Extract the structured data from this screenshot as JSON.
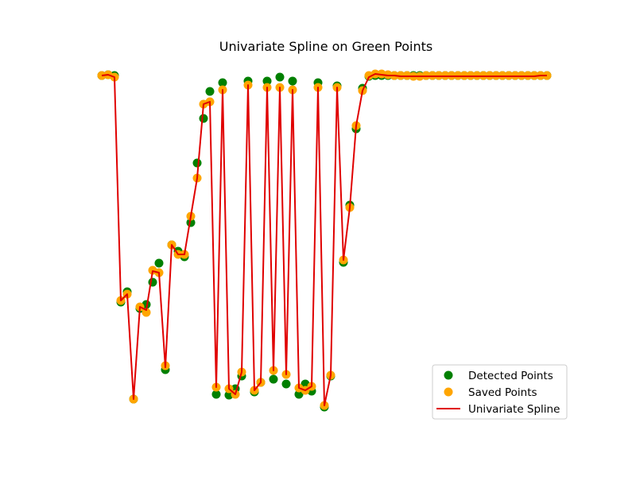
{
  "chart_data": {
    "type": "scatter",
    "title": "Univariate Spline on Green Points",
    "xlabel": "",
    "ylabel": "",
    "axes_visible": false,
    "grid": false,
    "legend_placement": "lower-right",
    "colors": {
      "detected": "#008000",
      "saved": "#ffa500",
      "spline": "#e00000"
    },
    "series": [
      {
        "name": "Detected Points",
        "kind": "scatter",
        "color": "#008000",
        "points": [
          [
            128,
            95
          ],
          [
            136,
            94
          ],
          [
            144,
            95
          ],
          [
            152,
            380
          ],
          [
            160,
            367
          ],
          [
            168,
            502
          ],
          [
            176,
            388
          ],
          [
            184,
            383
          ],
          [
            192,
            355
          ],
          [
            200,
            331
          ],
          [
            208,
            465
          ],
          [
            216,
            308
          ],
          [
            224,
            316
          ],
          [
            232,
            323
          ],
          [
            240,
            280
          ],
          [
            248,
            205
          ],
          [
            256,
            149
          ],
          [
            264,
            115
          ],
          [
            272,
            496
          ],
          [
            280,
            104
          ],
          [
            288,
            497
          ],
          [
            296,
            489
          ],
          [
            304,
            473
          ],
          [
            312,
            102
          ],
          [
            320,
            493
          ],
          [
            328,
            481
          ],
          [
            336,
            102
          ],
          [
            344,
            477
          ],
          [
            352,
            97
          ],
          [
            360,
            483
          ],
          [
            368,
            102
          ],
          [
            376,
            496
          ],
          [
            384,
            483
          ],
          [
            392,
            492
          ],
          [
            400,
            104
          ],
          [
            408,
            512
          ],
          [
            416,
            473
          ],
          [
            424,
            108
          ],
          [
            432,
            330
          ],
          [
            440,
            258
          ],
          [
            448,
            162
          ],
          [
            456,
            111
          ],
          [
            464,
            96
          ],
          [
            472,
            95
          ],
          [
            480,
            95
          ],
          [
            488,
            95
          ],
          [
            496,
            95
          ],
          [
            504,
            95
          ],
          [
            512,
            95
          ],
          [
            520,
            95
          ],
          [
            528,
            95
          ],
          [
            536,
            95
          ],
          [
            544,
            95
          ],
          [
            552,
            95
          ],
          [
            560,
            95
          ],
          [
            568,
            95
          ],
          [
            576,
            95
          ],
          [
            584,
            95
          ],
          [
            592,
            95
          ],
          [
            600,
            95
          ],
          [
            608,
            95
          ],
          [
            616,
            95
          ],
          [
            624,
            95
          ],
          [
            632,
            95
          ],
          [
            640,
            95
          ],
          [
            648,
            95
          ],
          [
            656,
            95
          ],
          [
            664,
            95
          ],
          [
            672,
            95
          ],
          [
            680,
            95
          ],
          [
            688,
            95
          ]
        ]
      },
      {
        "name": "Saved Points",
        "kind": "scatter",
        "color": "#ffa500",
        "points": [
          [
            128,
            95
          ],
          [
            136,
            94
          ],
          [
            144,
            97
          ],
          [
            152,
            378
          ],
          [
            160,
            370
          ],
          [
            168,
            502
          ],
          [
            176,
            386
          ],
          [
            184,
            393
          ],
          [
            192,
            340
          ],
          [
            200,
            343
          ],
          [
            208,
            460
          ],
          [
            216,
            308
          ],
          [
            224,
            320
          ],
          [
            232,
            320
          ],
          [
            240,
            272
          ],
          [
            248,
            224
          ],
          [
            256,
            131
          ],
          [
            264,
            128
          ],
          [
            272,
            487
          ],
          [
            280,
            113
          ],
          [
            288,
            489
          ],
          [
            296,
            496
          ],
          [
            304,
            468
          ],
          [
            312,
            107
          ],
          [
            320,
            491
          ],
          [
            328,
            481
          ],
          [
            336,
            110
          ],
          [
            344,
            466
          ],
          [
            352,
            110
          ],
          [
            360,
            471
          ],
          [
            368,
            113
          ],
          [
            376,
            488
          ],
          [
            384,
            491
          ],
          [
            392,
            486
          ],
          [
            400,
            110
          ],
          [
            408,
            510
          ],
          [
            416,
            472
          ],
          [
            424,
            110
          ],
          [
            432,
            327
          ],
          [
            440,
            261
          ],
          [
            448,
            158
          ],
          [
            456,
            114
          ],
          [
            464,
            95
          ],
          [
            472,
            93
          ],
          [
            480,
            93
          ],
          [
            488,
            94
          ],
          [
            496,
            95
          ],
          [
            504,
            95
          ],
          [
            512,
            95
          ],
          [
            520,
            96
          ],
          [
            528,
            96
          ],
          [
            536,
            95
          ],
          [
            544,
            95
          ],
          [
            552,
            95
          ],
          [
            560,
            95
          ],
          [
            568,
            95
          ],
          [
            576,
            95
          ],
          [
            584,
            95
          ],
          [
            592,
            95
          ],
          [
            600,
            95
          ],
          [
            608,
            95
          ],
          [
            616,
            95
          ],
          [
            624,
            95
          ],
          [
            632,
            95
          ],
          [
            640,
            95
          ],
          [
            648,
            95
          ],
          [
            656,
            95
          ],
          [
            664,
            95
          ],
          [
            672,
            95
          ],
          [
            680,
            95
          ],
          [
            688,
            95
          ]
        ]
      },
      {
        "name": "Univariate Spline",
        "kind": "line",
        "color": "#e00000",
        "points": [
          [
            128,
            95
          ],
          [
            136,
            94
          ],
          [
            144,
            97
          ],
          [
            152,
            378
          ],
          [
            160,
            370
          ],
          [
            168,
            502
          ],
          [
            176,
            386
          ],
          [
            184,
            390
          ],
          [
            192,
            341
          ],
          [
            200,
            343
          ],
          [
            208,
            462
          ],
          [
            216,
            308
          ],
          [
            224,
            320
          ],
          [
            232,
            320
          ],
          [
            240,
            272
          ],
          [
            248,
            224
          ],
          [
            256,
            131
          ],
          [
            264,
            128
          ],
          [
            272,
            487
          ],
          [
            280,
            113
          ],
          [
            288,
            489
          ],
          [
            296,
            496
          ],
          [
            304,
            468
          ],
          [
            312,
            107
          ],
          [
            320,
            491
          ],
          [
            328,
            481
          ],
          [
            336,
            110
          ],
          [
            344,
            466
          ],
          [
            352,
            110
          ],
          [
            360,
            471
          ],
          [
            368,
            113
          ],
          [
            376,
            488
          ],
          [
            384,
            491
          ],
          [
            392,
            486
          ],
          [
            400,
            110
          ],
          [
            408,
            510
          ],
          [
            416,
            472
          ],
          [
            424,
            110
          ],
          [
            432,
            327
          ],
          [
            440,
            261
          ],
          [
            448,
            158
          ],
          [
            456,
            114
          ],
          [
            464,
            97
          ],
          [
            472,
            93
          ],
          [
            480,
            94
          ],
          [
            488,
            95
          ],
          [
            496,
            95
          ],
          [
            504,
            96
          ],
          [
            512,
            96
          ],
          [
            520,
            96
          ],
          [
            528,
            96
          ],
          [
            536,
            96
          ],
          [
            544,
            96
          ],
          [
            552,
            96
          ],
          [
            560,
            96
          ],
          [
            568,
            96
          ],
          [
            576,
            96
          ],
          [
            584,
            96
          ],
          [
            592,
            96
          ],
          [
            600,
            96
          ],
          [
            608,
            96
          ],
          [
            616,
            96
          ],
          [
            624,
            96
          ],
          [
            632,
            96
          ],
          [
            640,
            96
          ],
          [
            648,
            96
          ],
          [
            656,
            96
          ],
          [
            664,
            96
          ],
          [
            672,
            96
          ],
          [
            680,
            95
          ],
          [
            688,
            95
          ]
        ]
      }
    ],
    "legend": [
      {
        "label": "Detected Points",
        "marker": "dot",
        "color": "#008000"
      },
      {
        "label": "Saved Points",
        "marker": "dot",
        "color": "#ffa500"
      },
      {
        "label": "Univariate Spline",
        "marker": "line",
        "color": "#e00000"
      }
    ]
  }
}
